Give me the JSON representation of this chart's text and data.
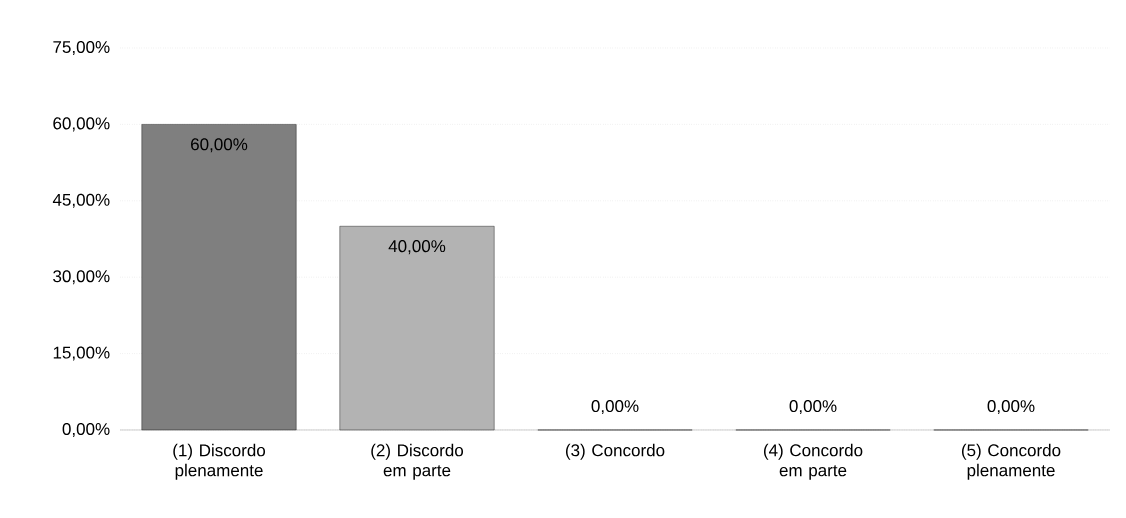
{
  "chart_data": {
    "type": "bar",
    "categories": [
      "(1) Discordo plenamente",
      "(2) Discordo em parte",
      "(3) Concordo",
      "(4) Concordo em parte",
      "(5) Concordo plenamente"
    ],
    "values": [
      60,
      40,
      0,
      0,
      0
    ],
    "colors": [
      "#7f7f7f",
      "#b3b3b3",
      "#b3b3b3",
      "#b3b3b3",
      "#b3b3b3"
    ],
    "value_labels": [
      "60,00%",
      "40,00%",
      "0,00%",
      "0,00%",
      "0,00%"
    ],
    "ylim": [
      0,
      75
    ],
    "yticks": [
      {
        "value": 0,
        "label": "0,00%"
      },
      {
        "value": 15,
        "label": "15,00%"
      },
      {
        "value": 30,
        "label": "30,00%"
      },
      {
        "value": 45,
        "label": "45,00%"
      },
      {
        "value": 60,
        "label": "60,00%"
      },
      {
        "value": 75,
        "label": "75,00%"
      }
    ],
    "grid": "y"
  }
}
